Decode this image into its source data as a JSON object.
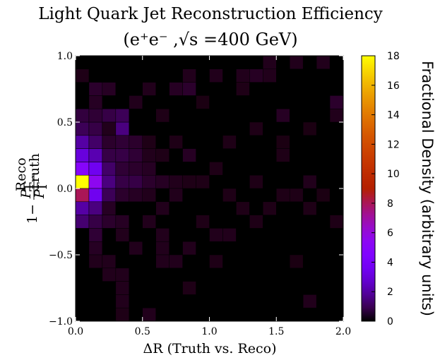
{
  "chart_data": {
    "type": "heatmap",
    "title_line1": "Light Quark Jet Reconstruction Efficiency",
    "title_line2": "(e⁺e⁻ ,√s =400 GeV)",
    "xlabel": "ΔR (Truth vs. Reco)",
    "ylabel": "1−P_T^Reco/P_T^Truth",
    "ylabel_prefix": "1−",
    "ylabel_num": "P",
    "ylabel_num_sub": "T",
    "ylabel_num_sup": "Reco",
    "ylabel_den": "P",
    "ylabel_den_sub": "T",
    "ylabel_den_sup": "Truth",
    "colorbar_label": "Fractional Density (arbitrary units)",
    "xlim": [
      0.0,
      2.0
    ],
    "ylim": [
      -1.0,
      1.0
    ],
    "x_ticks": [
      0.0,
      0.5,
      1.0,
      1.5,
      2.0
    ],
    "x_tick_labels": [
      "0.0",
      "0.5",
      "1.0",
      "1.5",
      "2.0"
    ],
    "y_ticks": [
      1.0,
      0.5,
      0.0,
      -0.5,
      -1.0
    ],
    "y_tick_labels": [
      "1.0",
      "0.5",
      "0.0",
      "−0.5",
      "−1.0"
    ],
    "colorbar_range": [
      0,
      18
    ],
    "colorbar_ticks": [
      18,
      16,
      14,
      12,
      10,
      8,
      6,
      4,
      2,
      0
    ],
    "colorbar_tick_labels": [
      "18",
      "16",
      "14",
      "12",
      "10",
      "8",
      "6",
      "4",
      "2",
      "0"
    ],
    "colormap": "gnuplot",
    "bins_x": 20,
    "bins_y": 20,
    "x_bin_width": 0.1,
    "y_bin_height": 0.1,
    "cells": [
      [
        0.05,
        0.05,
        18.0
      ],
      [
        0.05,
        -0.05,
        8.0
      ],
      [
        0.05,
        0.15,
        5.0
      ],
      [
        0.05,
        0.25,
        3.0
      ],
      [
        0.05,
        0.35,
        2.0
      ],
      [
        0.05,
        -0.15,
        2.0
      ],
      [
        0.05,
        -0.25,
        1.3
      ],
      [
        0.05,
        0.45,
        1.0
      ],
      [
        0.05,
        0.55,
        0.7
      ],
      [
        0.05,
        0.85,
        0.25
      ],
      [
        0.15,
        0.05,
        5.5
      ],
      [
        0.15,
        0.15,
        3.5
      ],
      [
        0.15,
        -0.05,
        3.5
      ],
      [
        0.15,
        0.25,
        2.2
      ],
      [
        0.15,
        -0.15,
        1.5
      ],
      [
        0.15,
        0.35,
        1.2
      ],
      [
        0.15,
        0.45,
        0.8
      ],
      [
        0.15,
        -0.25,
        0.8
      ],
      [
        0.15,
        -0.35,
        0.6
      ],
      [
        0.15,
        0.55,
        0.6
      ],
      [
        0.15,
        0.75,
        0.5
      ],
      [
        0.15,
        0.65,
        0.4
      ],
      [
        0.15,
        -0.45,
        0.4
      ],
      [
        0.15,
        -0.55,
        0.3
      ],
      [
        0.25,
        0.05,
        1.5
      ],
      [
        0.25,
        0.15,
        1.2
      ],
      [
        0.25,
        -0.05,
        1.0
      ],
      [
        0.25,
        0.25,
        0.8
      ],
      [
        0.25,
        0.55,
        0.8
      ],
      [
        0.25,
        -0.25,
        0.5
      ],
      [
        0.25,
        0.35,
        0.5
      ],
      [
        0.25,
        0.75,
        0.4
      ],
      [
        0.25,
        -0.15,
        0.4
      ],
      [
        0.25,
        0.45,
        0.3
      ],
      [
        0.25,
        -0.55,
        0.3
      ],
      [
        0.25,
        -0.65,
        0.3
      ],
      [
        0.35,
        0.45,
        1.5
      ],
      [
        0.35,
        0.55,
        1.0
      ],
      [
        0.35,
        0.05,
        0.8
      ],
      [
        0.35,
        0.25,
        0.8
      ],
      [
        0.35,
        0.35,
        0.6
      ],
      [
        0.35,
        0.15,
        0.6
      ],
      [
        0.35,
        -0.05,
        0.5
      ],
      [
        0.35,
        -0.25,
        0.4
      ],
      [
        0.35,
        -0.35,
        0.3
      ],
      [
        0.35,
        -0.65,
        0.3
      ],
      [
        0.35,
        -0.75,
        0.3
      ],
      [
        0.35,
        -0.85,
        0.3
      ],
      [
        0.35,
        -0.95,
        0.25
      ],
      [
        0.45,
        0.05,
        0.8
      ],
      [
        0.45,
        0.15,
        0.5
      ],
      [
        0.45,
        0.25,
        0.6
      ],
      [
        0.45,
        0.35,
        0.5
      ],
      [
        0.45,
        -0.05,
        0.4
      ],
      [
        0.45,
        0.65,
        0.3
      ],
      [
        0.45,
        -0.45,
        0.3
      ],
      [
        0.55,
        0.05,
        0.5
      ],
      [
        0.55,
        0.15,
        0.4
      ],
      [
        0.55,
        -0.05,
        0.3
      ],
      [
        0.55,
        0.25,
        0.3
      ],
      [
        0.55,
        0.75,
        0.3
      ],
      [
        0.55,
        -0.25,
        0.3
      ],
      [
        0.55,
        -0.95,
        0.3
      ],
      [
        0.55,
        0.35,
        0.25
      ],
      [
        0.65,
        0.05,
        0.4
      ],
      [
        0.65,
        -0.15,
        0.3
      ],
      [
        0.65,
        -0.35,
        0.3
      ],
      [
        0.65,
        -0.45,
        0.3
      ],
      [
        0.65,
        -0.55,
        0.3
      ],
      [
        0.65,
        0.55,
        0.25
      ],
      [
        0.65,
        0.25,
        0.25
      ],
      [
        0.75,
        0.05,
        0.3
      ],
      [
        0.75,
        0.75,
        0.4
      ],
      [
        0.75,
        -0.05,
        0.3
      ],
      [
        0.75,
        -0.55,
        0.3
      ],
      [
        0.75,
        0.35,
        0.25
      ],
      [
        0.85,
        0.75,
        0.5
      ],
      [
        0.85,
        0.85,
        0.3
      ],
      [
        0.85,
        0.25,
        0.4
      ],
      [
        0.85,
        -0.45,
        0.3
      ],
      [
        0.85,
        -0.75,
        0.25
      ],
      [
        0.85,
        0.05,
        0.25
      ],
      [
        0.95,
        0.05,
        0.25
      ],
      [
        0.95,
        -0.25,
        0.25
      ],
      [
        0.95,
        0.65,
        0.2
      ],
      [
        1.05,
        0.85,
        0.3
      ],
      [
        1.05,
        -0.35,
        0.3
      ],
      [
        1.05,
        -0.55,
        0.25
      ],
      [
        1.05,
        0.15,
        0.25
      ],
      [
        1.15,
        -0.35,
        0.3
      ],
      [
        1.15,
        0.35,
        0.25
      ],
      [
        1.15,
        -0.05,
        0.25
      ],
      [
        1.25,
        0.85,
        0.3
      ],
      [
        1.25,
        0.75,
        0.25
      ],
      [
        1.25,
        -0.15,
        0.25
      ],
      [
        1.35,
        0.85,
        0.4
      ],
      [
        1.35,
        0.45,
        0.25
      ],
      [
        1.35,
        0.05,
        0.25
      ],
      [
        1.35,
        -0.25,
        0.25
      ],
      [
        1.45,
        0.95,
        0.3
      ],
      [
        1.45,
        0.85,
        0.3
      ],
      [
        1.45,
        -0.15,
        0.25
      ],
      [
        1.55,
        0.55,
        0.4
      ],
      [
        1.55,
        0.25,
        0.25
      ],
      [
        1.55,
        -0.05,
        0.25
      ],
      [
        1.55,
        0.35,
        0.2
      ],
      [
        1.65,
        0.95,
        0.3
      ],
      [
        1.65,
        -0.05,
        0.25
      ],
      [
        1.65,
        -0.55,
        0.2
      ],
      [
        1.75,
        0.05,
        0.3
      ],
      [
        1.75,
        -0.15,
        0.25
      ],
      [
        1.75,
        -0.85,
        0.3
      ],
      [
        1.75,
        0.45,
        0.2
      ],
      [
        1.85,
        0.95,
        0.3
      ],
      [
        1.85,
        -0.05,
        0.2
      ],
      [
        1.95,
        0.65,
        0.5
      ],
      [
        1.95,
        0.55,
        0.3
      ],
      [
        1.95,
        -0.25,
        0.25
      ]
    ]
  }
}
